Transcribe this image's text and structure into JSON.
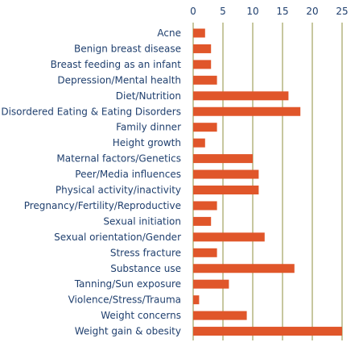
{
  "chart_data": {
    "type": "bar",
    "orientation": "horizontal",
    "title": "",
    "xlabel": "",
    "ylabel": "",
    "x_axis_position": "top",
    "xlim": [
      0,
      25
    ],
    "x_ticks": [
      0,
      5,
      10,
      15,
      20,
      25
    ],
    "grid": true,
    "legend": "none",
    "bar_color": "#e0562a",
    "grid_color": "#8f8f3f",
    "label_color": "#1f3f6e",
    "categories": [
      "Acne",
      "Benign breast disease",
      "Breast feeding as an infant",
      "Depression/Mental health",
      "Diet/Nutrition",
      "Disordered Eating & Eating Disorders",
      "Family dinner",
      "Height growth",
      "Maternal factors/Genetics",
      "Peer/Media influences",
      "Physical activity/inactivity",
      "Pregnancy/Fertility/Reproductive",
      "Sexual initiation",
      "Sexual orientation/Gender",
      "Stress fracture",
      "Substance use",
      "Tanning/Sun exposure",
      "Violence/Stress/Trauma",
      "Weight concerns",
      "Weight gain & obesity"
    ],
    "values": [
      2,
      3,
      3,
      4,
      16,
      18,
      4,
      2,
      10,
      11,
      11,
      4,
      3,
      12,
      4,
      17,
      6,
      1,
      9,
      25
    ]
  }
}
